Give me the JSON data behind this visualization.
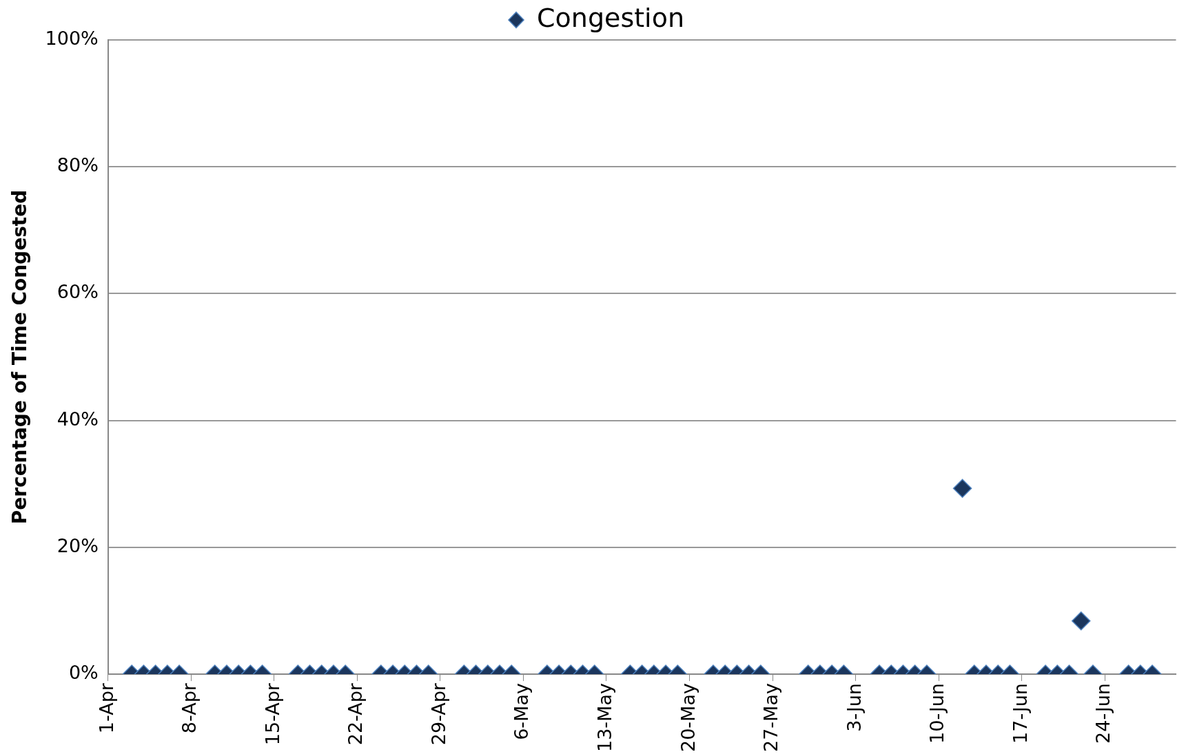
{
  "chart_data": {
    "type": "scatter",
    "ylabel": "Percentage of Time Congested",
    "x": [
      "--04-03",
      "--04-04",
      "--04-05",
      "--04-06",
      "--04-07",
      "--04-10",
      "--04-11",
      "--04-12",
      "--04-13",
      "--04-14",
      "--04-17",
      "--04-18",
      "--04-19",
      "--04-20",
      "--04-21",
      "--04-24",
      "--04-25",
      "--04-26",
      "--04-27",
      "--04-28",
      "--05-01",
      "--05-02",
      "--05-03",
      "--05-04",
      "--05-05",
      "--05-08",
      "--05-09",
      "--05-10",
      "--05-11",
      "--05-12",
      "--05-15",
      "--05-16",
      "--05-17",
      "--05-18",
      "--05-19",
      "--05-22",
      "--05-23",
      "--05-24",
      "--05-25",
      "--05-26",
      "--05-30",
      "--05-31",
      "--06-01",
      "--06-02",
      "--06-05",
      "--06-06",
      "--06-07",
      "--06-08",
      "--06-09",
      "--06-12",
      "--06-13",
      "--06-14",
      "--06-15",
      "--06-16",
      "--06-19",
      "--06-20",
      "--06-21",
      "--06-22",
      "--06-23",
      "--06-26",
      "--06-27",
      "--06-28"
    ],
    "series": [
      {
        "name": "Congestion",
        "color": "#1b365d",
        "values": [
          0,
          0,
          0,
          0,
          0,
          0,
          0,
          0,
          0,
          0,
          0,
          0,
          0,
          0,
          0,
          0,
          0,
          0,
          0,
          0,
          0,
          0,
          0,
          0,
          0,
          0,
          0,
          0,
          0,
          0,
          0,
          0,
          0,
          0,
          0,
          0,
          0,
          0,
          0,
          0,
          0,
          0,
          0,
          0,
          0,
          0,
          0,
          0,
          0,
          29.3,
          0,
          0,
          0,
          0,
          0,
          0,
          0,
          8.4,
          0,
          0,
          0,
          0
        ]
      }
    ],
    "xlim": [
      "--04-01",
      "--06-30"
    ],
    "xticks": [
      {
        "value": "--04-01",
        "label": "1-Apr"
      },
      {
        "value": "--04-08",
        "label": "8-Apr"
      },
      {
        "value": "--04-15",
        "label": "15-Apr"
      },
      {
        "value": "--04-22",
        "label": "22-Apr"
      },
      {
        "value": "--04-29",
        "label": "29-Apr"
      },
      {
        "value": "--05-06",
        "label": "6-May"
      },
      {
        "value": "--05-13",
        "label": "13-May"
      },
      {
        "value": "--05-20",
        "label": "20-May"
      },
      {
        "value": "--05-27",
        "label": "27-May"
      },
      {
        "value": "--06-03",
        "label": "3-Jun"
      },
      {
        "value": "--06-10",
        "label": "10-Jun"
      },
      {
        "value": "--06-17",
        "label": "17-Jun"
      },
      {
        "value": "--06-24",
        "label": "24-Jun"
      }
    ],
    "ylim": [
      0,
      100
    ],
    "yticks": [
      {
        "value": 0,
        "label": "0%"
      },
      {
        "value": 20,
        "label": "20%"
      },
      {
        "value": 40,
        "label": "40%"
      },
      {
        "value": 60,
        "label": "60%"
      },
      {
        "value": 80,
        "label": "80%"
      },
      {
        "value": 100,
        "label": "100%"
      }
    ],
    "grid": "y",
    "legend": "top",
    "marker": "diamond"
  }
}
